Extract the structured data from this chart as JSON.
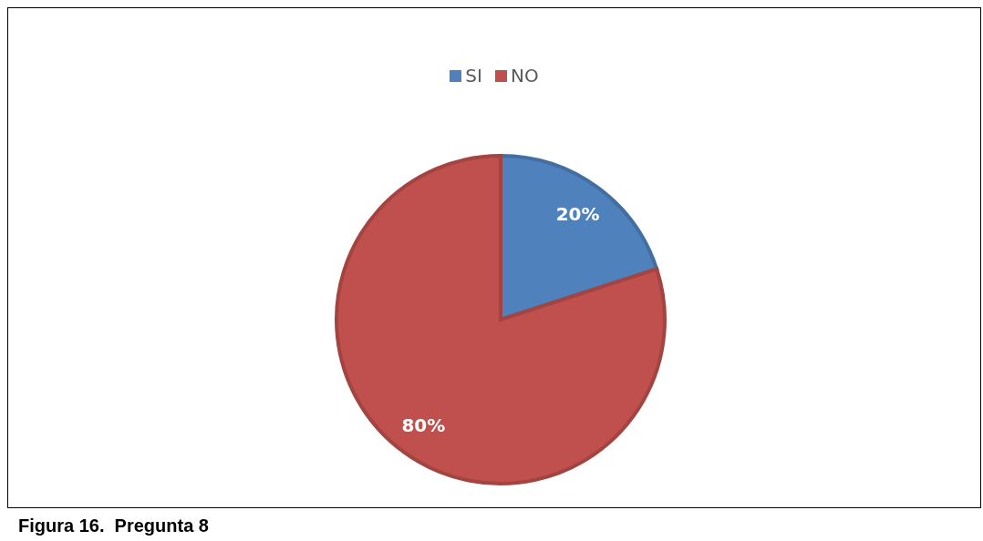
{
  "chart_data": {
    "type": "pie",
    "categories": [
      "SI",
      "NO"
    ],
    "values": [
      20,
      80
    ],
    "colors": [
      "#4f81bd",
      "#c0504d"
    ],
    "value_labels": [
      "20%",
      "80%"
    ],
    "legend": "top",
    "annotations": [
      "Figura 16.  Pregunta 8"
    ]
  }
}
